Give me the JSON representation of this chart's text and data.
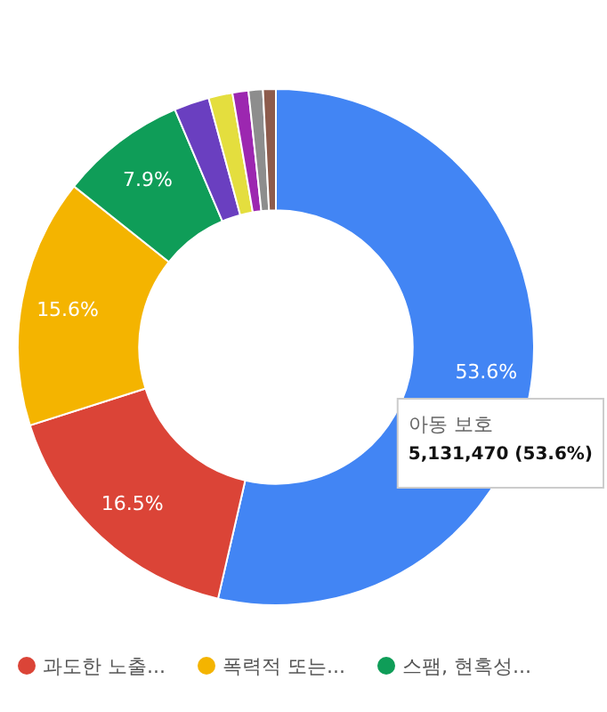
{
  "chart_data": {
    "type": "donut",
    "categories": [
      null,
      "과도한 노출...",
      "폭력적 또는...",
      "스팸, 현혹성...",
      null,
      null,
      null,
      null,
      null
    ],
    "values": [
      53.6,
      16.5,
      15.6,
      7.9,
      2.2,
      1.5,
      1.0,
      0.9,
      0.8
    ],
    "colors": [
      "#4285f4",
      "#db4437",
      "#f4b400",
      "#0f9d58",
      "#6a3fc0",
      "#e4de3e",
      "#9c27b0",
      "#8d8d8d",
      "#8d5b4c"
    ],
    "value_labels": [
      "53.6%",
      "16.5%",
      "15.6%",
      "7.9%",
      null,
      null,
      null,
      null,
      null
    ],
    "legend": "bottom",
    "annotations": [
      "아동 보호",
      "5,131,470 (53.6%)"
    ]
  }
}
